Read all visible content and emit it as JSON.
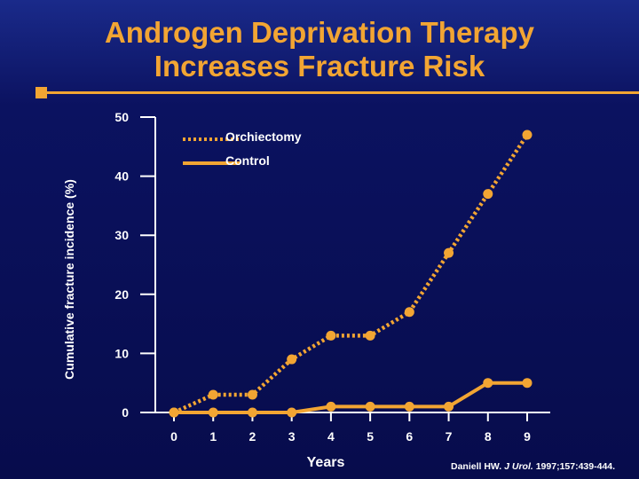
{
  "title_line1": "Androgen Deprivation Therapy",
  "title_line2": "Increases Fracture Risk",
  "colors": {
    "accent": "#f2a533",
    "background": "#0a0f52",
    "text": "#ffffff"
  },
  "chart_data": {
    "type": "line",
    "title": "Androgen Deprivation Therapy Increases Fracture Risk",
    "xlabel": "Years",
    "ylabel": "Cumulative fracture incidence (%)",
    "x": [
      0,
      1,
      2,
      3,
      4,
      5,
      6,
      7,
      8,
      9
    ],
    "xlim": [
      0,
      9
    ],
    "ylim": [
      0,
      50
    ],
    "y_ticks": [
      0,
      10,
      20,
      30,
      40,
      50
    ],
    "legend_position": "top",
    "series": [
      {
        "name": "Orchiectomy",
        "style": "dotted",
        "color": "#f2a533",
        "x": [
          0,
          1,
          2,
          3,
          4,
          5,
          6,
          7,
          8,
          9
        ],
        "values": [
          0,
          3,
          3,
          9,
          13,
          13,
          17,
          27,
          37,
          47
        ]
      },
      {
        "name": "Control",
        "style": "solid",
        "color": "#f2a533",
        "x": [
          0,
          1,
          2,
          3,
          4,
          5,
          6,
          7,
          8,
          9
        ],
        "values": [
          0,
          0,
          0,
          0,
          1,
          1,
          1,
          1,
          5,
          5
        ]
      }
    ]
  },
  "citation": {
    "authors": "Daniell HW.",
    "journal": "J Urol.",
    "details": "1997;157:439-444."
  }
}
